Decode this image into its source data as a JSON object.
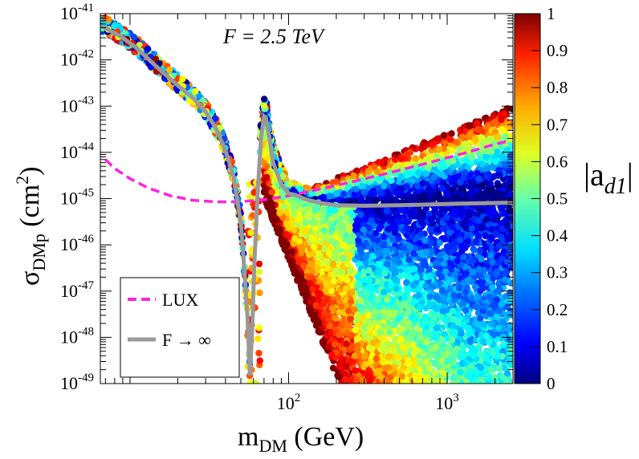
{
  "chart_data": {
    "type": "scatter",
    "title": "",
    "annotation": "F = 2.5 TeV",
    "xlabel": {
      "main": "m",
      "sub": "DM",
      "unit": " (GeV)"
    },
    "ylabel": {
      "main": "σ",
      "sub": "DMp",
      "unit_pre": " (cm",
      "unit_sup": "2",
      "unit_post": ")"
    },
    "xscale": "log",
    "yscale": "log",
    "xlim": [
      6.5,
      2600
    ],
    "ylim": [
      1e-49,
      1e-41
    ],
    "x_ticks": [
      {
        "value": 100,
        "base": "10",
        "exp": "2"
      },
      {
        "value": 1000,
        "base": "10",
        "exp": "3"
      }
    ],
    "y_ticks": [
      {
        "value": 1e-41,
        "base": "10",
        "exp": "-41"
      },
      {
        "value": 1e-42,
        "base": "10",
        "exp": "-42"
      },
      {
        "value": 1e-43,
        "base": "10",
        "exp": "-43"
      },
      {
        "value": 1e-44,
        "base": "10",
        "exp": "-44"
      },
      {
        "value": 1e-45,
        "base": "10",
        "exp": "-45"
      },
      {
        "value": 1e-46,
        "base": "10",
        "exp": "-46"
      },
      {
        "value": 1e-47,
        "base": "10",
        "exp": "-47"
      },
      {
        "value": 1e-48,
        "base": "10",
        "exp": "-48"
      },
      {
        "value": 1e-49,
        "base": "10",
        "exp": "-49"
      }
    ],
    "colorbar": {
      "label_main": "|a",
      "label_sub": "d1",
      "label_end": "|",
      "range": [
        0,
        1
      ],
      "ticks": [
        "0",
        "0.1",
        "0.2",
        "0.3",
        "0.4",
        "0.5",
        "0.6",
        "0.7",
        "0.8",
        "0.9",
        "1"
      ]
    },
    "legend": {
      "position": "bottom-left",
      "entries": [
        "LUX",
        "F → ∞"
      ]
    },
    "series": [
      {
        "name": "LUX",
        "kind": "line",
        "style": "dashed",
        "color": "#ff22dd",
        "x": [
          7,
          8,
          10,
          13,
          18,
          25,
          35,
          50,
          70,
          100,
          150,
          250,
          400,
          700,
          1200,
          2000,
          2500
        ],
        "y": [
          7e-45,
          4.5e-45,
          2.7e-45,
          1.7e-45,
          1.15e-45,
          9.2e-46,
          8.5e-46,
          8.6e-46,
          9.5e-46,
          1.15e-45,
          1.55e-45,
          2.3e-45,
          3.4e-45,
          5.5e-45,
          9e-45,
          1.5e-44,
          1.8e-44
        ]
      },
      {
        "name": "F → ∞",
        "kind": "line",
        "style": "solid",
        "color": "#999999",
        "x": [
          6.6,
          7.5,
          9,
          11,
          13,
          16,
          20,
          25,
          30,
          35,
          40,
          45,
          50,
          52,
          55,
          57,
          59,
          60,
          61,
          62,
          63,
          64,
          65,
          67,
          70,
          72,
          75,
          80,
          90,
          100,
          110,
          130,
          160,
          200,
          300,
          500,
          800,
          1200,
          1800,
          2600
        ],
        "y": [
          5.5e-42,
          4.3e-42,
          3e-42,
          1.8e-42,
          1.05e-42,
          5.5e-43,
          2.8e-43,
          1.5e-43,
          7.5e-44,
          3.2e-44,
          1.1e-44,
          3e-45,
          3e-46,
          5e-47,
          3e-48,
          1.5e-49,
          1.5e-48,
          1e-47,
          5e-47,
          1.5e-46,
          6e-46,
          1.5e-45,
          3.5e-45,
          2e-44,
          6e-44,
          5.5e-44,
          2.5e-44,
          6e-45,
          2e-45,
          1.3e-45,
          1.2e-45,
          9.5e-46,
          8e-46,
          7.2e-46,
          7e-46,
          7.2e-46,
          7.5e-46,
          7.8e-46,
          8e-46,
          8.2e-46
        ]
      }
    ],
    "scatter_regions": [
      {
        "name": "low-mass band (|a_d1| ≈ 0–1, mixed)",
        "x_range": [
          6.6,
          58
        ],
        "y_range": [
          4e-46,
          8e-42
        ]
      },
      {
        "name": "second resonance peak",
        "x_range": [
          62,
          95
        ],
        "y_range": [
          1e-48,
          9e-45
        ]
      },
      {
        "name": "high-mass fan",
        "x_range": [
          65,
          2600
        ],
        "y_range": [
          1e-49,
          1e-44
        ],
        "trend": "|a_d1| ≈ 1 at lower edge and upper edge; |a_d1| ≈ 0 near F → ∞ curve"
      }
    ]
  }
}
